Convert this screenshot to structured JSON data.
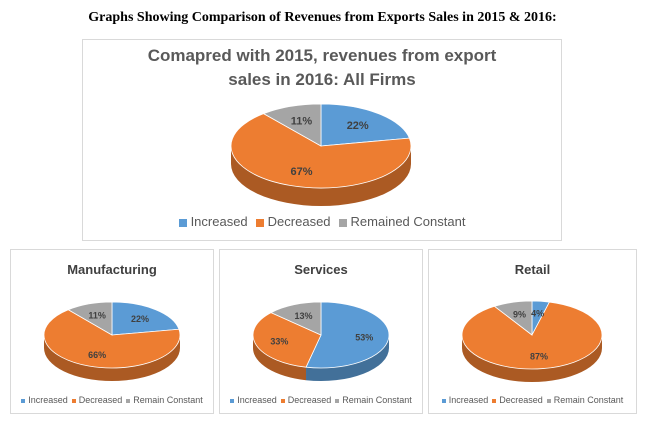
{
  "page_title": "Graphs Showing Comparison of Revenues from Exports Sales in 2015 & 2016:",
  "colors": {
    "increased": "#5b9bd5",
    "decreased": "#ed7d31",
    "constant": "#a5a5a5"
  },
  "chart_data": [
    {
      "type": "pie",
      "title_line1": "Comapred with 2015, revenues from export",
      "title_line2": "sales in 2016: All Firms",
      "categories": [
        "Increased",
        "Decreased",
        "Remained Constant"
      ],
      "values": [
        22,
        67,
        11
      ],
      "labels": [
        "22%",
        "67%",
        "11%"
      ],
      "legend_position": "bottom"
    },
    {
      "type": "pie",
      "title": "Manufacturing",
      "categories": [
        "Increased",
        "Decreased",
        "Remain Constant"
      ],
      "values": [
        22,
        66,
        11
      ],
      "labels": [
        "22%",
        "66%",
        "11%"
      ],
      "legend_position": "bottom"
    },
    {
      "type": "pie",
      "title": "Services",
      "categories": [
        "Increased",
        "Decreased",
        "Remain Constant"
      ],
      "values": [
        53,
        33,
        13
      ],
      "labels": [
        "53%",
        "33%",
        "13%"
      ],
      "legend_position": "bottom"
    },
    {
      "type": "pie",
      "title": "Retail",
      "categories": [
        "Increased",
        "Decreased",
        "Remain Constant"
      ],
      "values": [
        4,
        87,
        9
      ],
      "labels": [
        "4%",
        "87%",
        "9%"
      ],
      "legend_position": "bottom"
    }
  ]
}
